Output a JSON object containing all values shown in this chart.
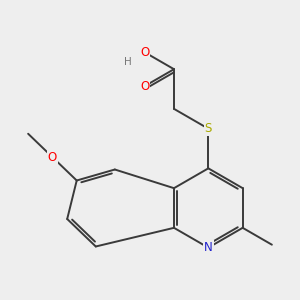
{
  "background_color": "#eeeeee",
  "bond_color": "#3a3a3a",
  "atom_colors": {
    "O": "#ff0000",
    "N": "#2222cc",
    "S": "#aaaa00",
    "H": "#777777",
    "C": "#3a3a3a"
  },
  "figsize": [
    3.0,
    3.0
  ],
  "dpi": 100
}
